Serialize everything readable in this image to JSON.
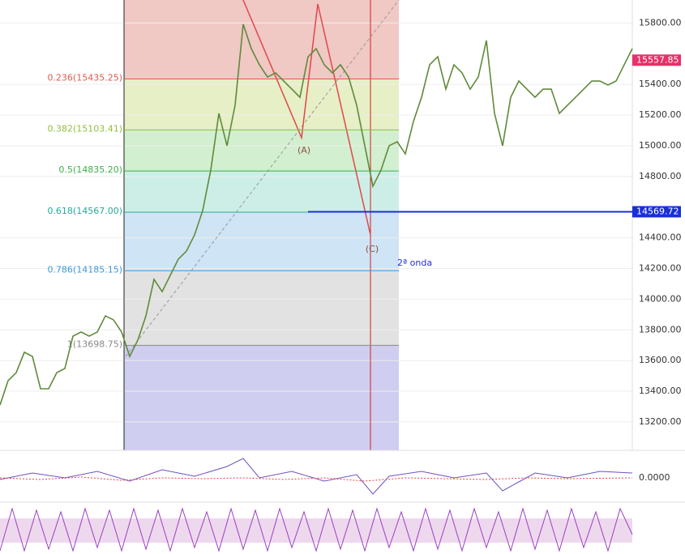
{
  "chart_data": {
    "type": "line",
    "series": [
      {
        "name": "Price",
        "color": "#5f8a3a",
        "values": [
          13310,
          13469,
          13521,
          13654,
          13627,
          13416,
          13416,
          13521,
          13548,
          13759,
          13786,
          13759,
          13786,
          13891,
          13865,
          13786,
          13627,
          13733,
          13891,
          14129,
          14049,
          14155,
          14261,
          14313,
          14419,
          14577,
          14841,
          15211,
          15000,
          15264,
          15792,
          15633,
          15528,
          15448,
          15475,
          15422,
          15369,
          15316,
          15580,
          15633,
          15528,
          15475,
          15528,
          15448,
          15264,
          15000,
          14736,
          14841,
          15000,
          15026,
          14947,
          15158,
          15316,
          15528,
          15580,
          15369,
          15528,
          15475,
          15369,
          15448,
          15686,
          15211,
          15000,
          15316,
          15422,
          15369,
          15316,
          15369,
          15369,
          15211,
          15264,
          15316,
          15369,
          15422,
          15422,
          15396,
          15422,
          15528,
          15633
        ]
      }
    ],
    "ylim": [
      13020,
      15950
    ],
    "yticks": [
      {
        "value": 15800,
        "label": "15800.00"
      },
      {
        "value": 15400,
        "label": "15400.00"
      },
      {
        "value": 15200,
        "label": "15200.00"
      },
      {
        "value": 15000,
        "label": "15000.00"
      },
      {
        "value": 14800,
        "label": "14800.00"
      },
      {
        "value": 14400,
        "label": "14400.00"
      },
      {
        "value": 14200,
        "label": "14200.00"
      },
      {
        "value": 14000,
        "label": "14000.00"
      },
      {
        "value": 13800,
        "label": "13800.00"
      },
      {
        "value": 13600,
        "label": "13600.00"
      },
      {
        "value": 13400,
        "label": "13400.00"
      },
      {
        "value": 13200,
        "label": "13200.00"
      }
    ],
    "fib_levels": [
      {
        "label": "0.236(15435.25)",
        "value": 15435.25,
        "color": "#e05a50"
      },
      {
        "label": "0.382(15103.41)",
        "value": 15103.41,
        "color": "#8fbf3a"
      },
      {
        "label": "0.5(14835.20)",
        "value": 14835.2,
        "color": "#3cb04a"
      },
      {
        "label": "0.618(14567.00)",
        "value": 14567.0,
        "color": "#2aa89a"
      },
      {
        "label": "0.786(14185.15)",
        "value": 14185.15,
        "color": "#3c9ad8"
      },
      {
        "label": "1(13698.75)",
        "value": 13698.75,
        "color": "#888888"
      }
    ],
    "price_tags": [
      {
        "label": "15557.85",
        "value": 15557.85,
        "color": "#e8306a"
      },
      {
        "label": "14569.72",
        "value": 14569.72,
        "color": "#1a2fd8"
      }
    ],
    "annotations": [
      "(A)",
      "(C)",
      "2ª onda"
    ],
    "oscillator_label": "0.0000"
  }
}
